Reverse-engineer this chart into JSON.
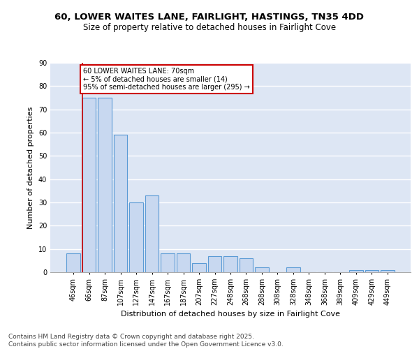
{
  "title": "60, LOWER WAITES LANE, FAIRLIGHT, HASTINGS, TN35 4DD",
  "subtitle": "Size of property relative to detached houses in Fairlight Cove",
  "xlabel": "Distribution of detached houses by size in Fairlight Cove",
  "ylabel": "Number of detached properties",
  "bar_labels": [
    "46sqm",
    "66sqm",
    "87sqm",
    "107sqm",
    "127sqm",
    "147sqm",
    "167sqm",
    "187sqm",
    "207sqm",
    "227sqm",
    "248sqm",
    "268sqm",
    "288sqm",
    "308sqm",
    "328sqm",
    "348sqm",
    "368sqm",
    "389sqm",
    "409sqm",
    "429sqm",
    "449sqm"
  ],
  "bar_values": [
    8,
    75,
    75,
    59,
    30,
    33,
    8,
    8,
    4,
    7,
    7,
    6,
    2,
    0,
    2,
    0,
    0,
    0,
    1,
    1,
    1
  ],
  "bar_color": "#c8d8f0",
  "bar_edge_color": "#5b9bd5",
  "bar_edge_width": 0.8,
  "vline_x_index": 1,
  "vline_color": "#cc0000",
  "annotation_text": "60 LOWER WAITES LANE: 70sqm\n← 5% of detached houses are smaller (14)\n95% of semi-detached houses are larger (295) →",
  "annotation_box_color": "#cc0000",
  "annotation_text_color": "#000000",
  "ylim": [
    0,
    90
  ],
  "yticks": [
    0,
    10,
    20,
    30,
    40,
    50,
    60,
    70,
    80,
    90
  ],
  "background_color": "#dde6f4",
  "grid_color": "#ffffff",
  "footer_line1": "Contains HM Land Registry data © Crown copyright and database right 2025.",
  "footer_line2": "Contains public sector information licensed under the Open Government Licence v3.0.",
  "title_fontsize": 9.5,
  "subtitle_fontsize": 8.5,
  "axis_label_fontsize": 8,
  "tick_fontsize": 7,
  "annotation_fontsize": 7,
  "footer_fontsize": 6.5
}
